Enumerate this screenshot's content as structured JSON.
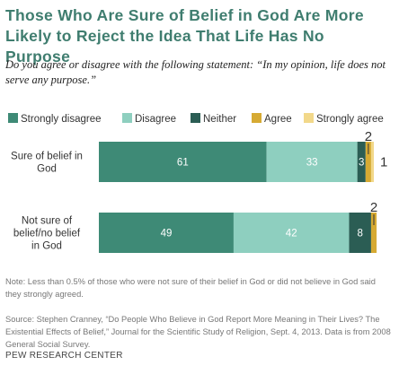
{
  "title": "Those Who Are Sure of Belief in God Are More Likely to Reject the Idea That Life Has No Purpose",
  "subtitle": "Do you agree or disagree with the following statement: “In my opinion, life does not serve any purpose.”",
  "note": "Note: Less than 0.5% of those who were not sure of their belief in God or did not believe in God said they strongly agreed.",
  "source": "Source: Stephen Cranney, “Do People Who Believe in God Report More Meaning in Their Lives? The Existential Effects of Belief,” Journal for the Scientific Study of Religion, Sept. 4, 2013. Data is from 2008 General Social Survey.",
  "organization": "PEW RESEARCH CENTER",
  "chart_data": {
    "type": "bar",
    "orientation": "horizontal",
    "stacked": true,
    "legend_position": "top",
    "categories": [
      "Sure of belief in God",
      "Not sure of belief/no belief in God"
    ],
    "series": [
      {
        "name": "Strongly disagree",
        "color": "#3e8a76",
        "values": [
          61,
          49
        ]
      },
      {
        "name": "Disagree",
        "color": "#8ecfbf",
        "values": [
          33,
          42
        ]
      },
      {
        "name": "Neither",
        "color": "#2b5d54",
        "values": [
          3,
          8
        ]
      },
      {
        "name": "Agree",
        "color": "#d6aa33",
        "values": [
          2,
          2
        ]
      },
      {
        "name": "Strongly agree",
        "color": "#f2d88a",
        "values": [
          1,
          0
        ]
      }
    ]
  }
}
